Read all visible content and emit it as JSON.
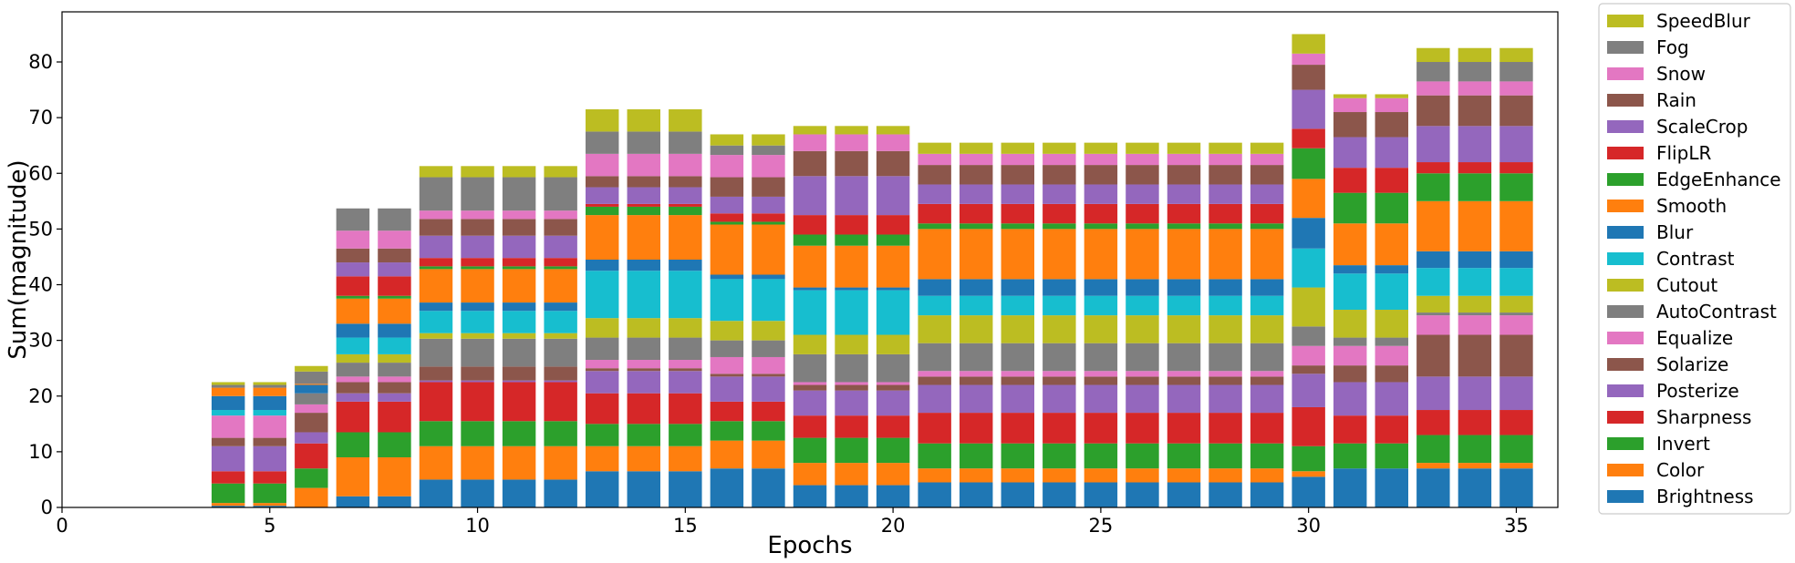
{
  "chart_data": {
    "type": "bar",
    "stacked": true,
    "xlabel": "Epochs",
    "ylabel": "Sum(magnitude)",
    "xlim": [
      0,
      36
    ],
    "ylim": [
      0,
      89
    ],
    "xticks": [
      0,
      5,
      10,
      15,
      20,
      25,
      30,
      35
    ],
    "yticks": [
      0,
      10,
      20,
      30,
      40,
      50,
      60,
      70,
      80
    ],
    "legend_position": "right",
    "categories": [
      4,
      5,
      6,
      7,
      8,
      9,
      10,
      11,
      12,
      13,
      14,
      15,
      16,
      17,
      18,
      19,
      20,
      21,
      22,
      23,
      24,
      25,
      26,
      27,
      28,
      29,
      30,
      31,
      32,
      33,
      34,
      35
    ],
    "series": [
      {
        "name": "Brightness",
        "color": "#1f77b4",
        "values": [
          0.3,
          0.3,
          0,
          2,
          2,
          5,
          5,
          5,
          5,
          6.5,
          6.5,
          6.5,
          7,
          7,
          4,
          4,
          4,
          4.5,
          4.5,
          4.5,
          4.5,
          4.5,
          4.5,
          4.5,
          4.5,
          4.5,
          5.5,
          7,
          7,
          7,
          7,
          7
        ]
      },
      {
        "name": "Color",
        "color": "#ff7f0e",
        "values": [
          0.5,
          0.5,
          3.5,
          7,
          7,
          6,
          6,
          6,
          6,
          4.5,
          4.5,
          4.5,
          5,
          5,
          4,
          4,
          4,
          2.5,
          2.5,
          2.5,
          2.5,
          2.5,
          2.5,
          2.5,
          2.5,
          2.5,
          1,
          0,
          0,
          1,
          1,
          1
        ]
      },
      {
        "name": "Invert",
        "color": "#2ca02c",
        "values": [
          3.5,
          3.5,
          3.5,
          4.5,
          4.5,
          4.5,
          4.5,
          4.5,
          4.5,
          4,
          4,
          4,
          3.5,
          3.5,
          4.5,
          4.5,
          4.5,
          4.5,
          4.5,
          4.5,
          4.5,
          4.5,
          4.5,
          4.5,
          4.5,
          4.5,
          4.5,
          4.5,
          4.5,
          5,
          5,
          5
        ]
      },
      {
        "name": "Sharpness",
        "color": "#d62728",
        "values": [
          2.2,
          2.2,
          4.5,
          5.5,
          5.5,
          7,
          7,
          7,
          7,
          5.5,
          5.5,
          5.5,
          3.5,
          3.5,
          4,
          4,
          4,
          5.5,
          5.5,
          5.5,
          5.5,
          5.5,
          5.5,
          5.5,
          5.5,
          5.5,
          7,
          5,
          5,
          4.5,
          4.5,
          4.5
        ]
      },
      {
        "name": "Posterize",
        "color": "#9467bd",
        "values": [
          4.5,
          4.5,
          2,
          1.5,
          1.5,
          0.3,
          0.3,
          0.3,
          0.3,
          4,
          4,
          4,
          4.5,
          4.5,
          4.5,
          4.5,
          4.5,
          5,
          5,
          5,
          5,
          5,
          5,
          5,
          5,
          5,
          6,
          6,
          6,
          6,
          6,
          6
        ]
      },
      {
        "name": "Solarize",
        "color": "#8c564b",
        "values": [
          1.5,
          1.5,
          3.5,
          2,
          2,
          2.5,
          2.5,
          2.5,
          2.5,
          0.5,
          0.5,
          0.5,
          0.5,
          0.5,
          1,
          1,
          1,
          1.5,
          1.5,
          1.5,
          1.5,
          1.5,
          1.5,
          1.5,
          1.5,
          1.5,
          1.5,
          3,
          3,
          7.5,
          7.5,
          7.5
        ]
      },
      {
        "name": "Equalize",
        "color": "#e377c2",
        "values": [
          4,
          4,
          1.5,
          1,
          1,
          0,
          0,
          0,
          0,
          1.5,
          1.5,
          1.5,
          3,
          3,
          0.5,
          0.5,
          0.5,
          1,
          1,
          1,
          1,
          1,
          1,
          1,
          1,
          1,
          3.5,
          3.5,
          3.5,
          3.5,
          3.5,
          3.5
        ]
      },
      {
        "name": "AutoContrast",
        "color": "#7f7f7f",
        "values": [
          0,
          0,
          2,
          2.5,
          2.5,
          5,
          5,
          5,
          5,
          4,
          4,
          4,
          3,
          3,
          5,
          5,
          5,
          5,
          5,
          5,
          5,
          5,
          5,
          5,
          5,
          5,
          3.5,
          1.5,
          1.5,
          0.5,
          0.5,
          0.5
        ]
      },
      {
        "name": "Cutout",
        "color": "#bcbd22",
        "values": [
          0,
          0,
          0,
          1.5,
          1.5,
          1,
          1,
          1,
          1,
          3.5,
          3.5,
          3.5,
          3.5,
          3.5,
          3.5,
          3.5,
          3.5,
          5,
          5,
          5,
          5,
          5,
          5,
          5,
          5,
          5,
          7,
          5,
          5,
          3,
          3,
          3
        ]
      },
      {
        "name": "Contrast",
        "color": "#17becf",
        "values": [
          1,
          1,
          0,
          3,
          3,
          4,
          4,
          4,
          4,
          8.5,
          8.5,
          8.5,
          7.5,
          7.5,
          8,
          8,
          8,
          3.5,
          3.5,
          3.5,
          3.5,
          3.5,
          3.5,
          3.5,
          3.5,
          3.5,
          7,
          6.5,
          6.5,
          5,
          5,
          5
        ]
      },
      {
        "name": "Blur",
        "color": "#1f77b4",
        "values": [
          2.5,
          2.5,
          1.5,
          2.5,
          2.5,
          1.5,
          1.5,
          1.5,
          1.5,
          2,
          2,
          2,
          0.8,
          0.8,
          0.5,
          0.5,
          0.5,
          3,
          3,
          3,
          3,
          3,
          3,
          3,
          3,
          3,
          5.5,
          1.5,
          1.5,
          3,
          3,
          3
        ]
      },
      {
        "name": "Smooth",
        "color": "#ff7f0e",
        "values": [
          1.5,
          1.5,
          0.2,
          4.5,
          4.5,
          6,
          6,
          6,
          6,
          8,
          8,
          8,
          9,
          9,
          7.5,
          7.5,
          7.5,
          9,
          9,
          9,
          9,
          9,
          9,
          9,
          9,
          9,
          7,
          7.5,
          7.5,
          9,
          9,
          9
        ]
      },
      {
        "name": "EdgeEnhance",
        "color": "#2ca02c",
        "values": [
          0,
          0,
          0,
          0.5,
          0.5,
          0.5,
          0.5,
          0.5,
          0.5,
          1.5,
          1.5,
          1.5,
          0.5,
          0.5,
          2,
          2,
          2,
          1,
          1,
          1,
          1,
          1,
          1,
          1,
          1,
          1,
          5.5,
          5.5,
          5.5,
          5,
          5,
          5
        ]
      },
      {
        "name": "FlipLR",
        "color": "#d62728",
        "values": [
          0,
          0,
          0,
          3.5,
          3.5,
          1.5,
          1.5,
          1.5,
          1.5,
          0.5,
          0.5,
          0.5,
          1.5,
          1.5,
          3.5,
          3.5,
          3.5,
          3.5,
          3.5,
          3.5,
          3.5,
          3.5,
          3.5,
          3.5,
          3.5,
          3.5,
          3.5,
          4.5,
          4.5,
          2,
          2,
          2
        ]
      },
      {
        "name": "ScaleCrop",
        "color": "#9467bd",
        "values": [
          0,
          0,
          0,
          2.5,
          2.5,
          4,
          4,
          4,
          4,
          3,
          3,
          3,
          3,
          3,
          7,
          7,
          7,
          3.5,
          3.5,
          3.5,
          3.5,
          3.5,
          3.5,
          3.5,
          3.5,
          3.5,
          7,
          5.5,
          5.5,
          6.5,
          6.5,
          6.5
        ]
      },
      {
        "name": "Rain",
        "color": "#8c564b",
        "values": [
          0,
          0,
          0,
          2.5,
          2.5,
          3,
          3,
          3,
          3,
          2,
          2,
          2,
          3.5,
          3.5,
          4.5,
          4.5,
          4.5,
          3.5,
          3.5,
          3.5,
          3.5,
          3.5,
          3.5,
          3.5,
          3.5,
          3.5,
          4.5,
          4.5,
          4.5,
          5.5,
          5.5,
          5.5
        ]
      },
      {
        "name": "Snow",
        "color": "#e377c2",
        "values": [
          0,
          0,
          0,
          3.2,
          3.2,
          1.5,
          1.5,
          1.5,
          1.5,
          4,
          4,
          4,
          4,
          4,
          3,
          3,
          3,
          2,
          2,
          2,
          2,
          2,
          2,
          2,
          2,
          2,
          2,
          2.5,
          2.5,
          2.5,
          2.5,
          2.5
        ]
      },
      {
        "name": "Fog",
        "color": "#7f7f7f",
        "values": [
          0.5,
          0.5,
          2.2,
          4,
          4,
          6,
          6,
          6,
          6,
          4,
          4,
          4,
          1.7,
          1.7,
          0,
          0,
          0,
          0,
          0,
          0,
          0,
          0,
          0,
          0,
          0,
          0,
          0,
          0,
          0,
          3.5,
          3.5,
          3.5
        ]
      },
      {
        "name": "SpeedBlur",
        "color": "#bcbd22",
        "values": [
          0.5,
          0.5,
          1,
          0,
          0,
          2,
          2,
          2,
          2,
          4,
          4,
          4,
          2,
          2,
          1.5,
          1.5,
          1.5,
          2,
          2,
          2,
          2,
          2,
          2,
          2,
          2,
          2,
          3.5,
          0.7,
          0.7,
          2.5,
          2.5,
          2.5
        ]
      }
    ]
  }
}
